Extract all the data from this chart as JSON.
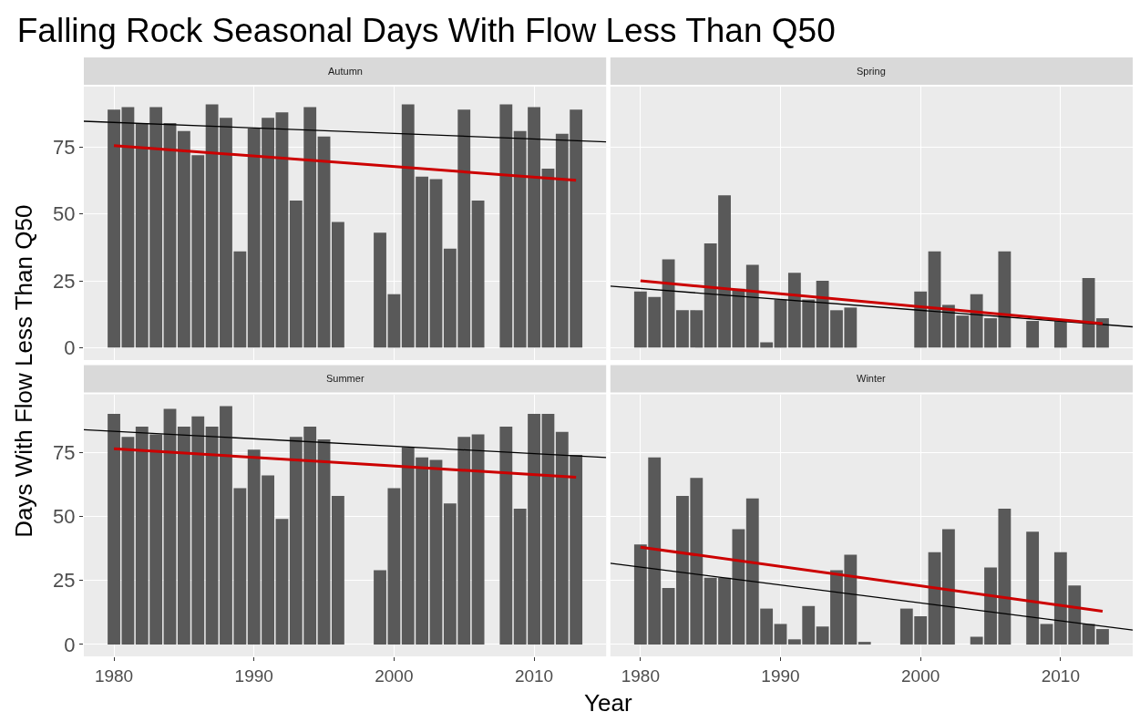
{
  "chart_data": [
    {
      "type": "bar",
      "title": "Falling Rock Seasonal Days With Flow Less Than Q50",
      "subtitle": "Autumn",
      "ylabel": "Days With Flow Less Than Q50",
      "x": [
        1980,
        1981,
        1982,
        1983,
        1984,
        1985,
        1986,
        1987,
        1988,
        1989,
        1990,
        1991,
        1992,
        1993,
        1994,
        1995,
        1996,
        1997,
        1998,
        1999,
        2000,
        2001,
        2002,
        2003,
        2004,
        2005,
        2006,
        2007,
        2008,
        2009,
        2010,
        2011,
        2012,
        2013
      ],
      "series": [
        {
          "color": "#595959",
          "values": [
            89,
            90,
            84,
            90,
            84,
            81,
            72,
            91,
            86,
            36,
            82,
            86,
            88,
            55,
            90,
            79,
            47,
            null,
            null,
            43,
            20,
            91,
            64,
            63,
            37,
            89,
            55,
            null,
            91,
            81,
            90,
            67,
            80,
            89
          ]
        },
        {
          "type": "line",
          "color": "#000000",
          "x": [
            1977.85,
            2015.15
          ],
          "values": [
            84.7,
            77
          ]
        },
        {
          "type": "line",
          "color": "#cc0000",
          "x": [
            1980,
            2013
          ],
          "values": [
            75.6,
            62.6
          ]
        }
      ],
      "xlim": [
        1977.85,
        2015.15
      ],
      "ylim": [
        -4.65,
        97.65
      ],
      "xticks": [
        1980,
        1990,
        2000,
        2010
      ],
      "yticks": [
        0,
        25,
        50,
        75
      ],
      "grid": true,
      "tick_labels": "y"
    },
    {
      "type": "bar",
      "subtitle": "Spring",
      "x": [
        1980,
        1981,
        1982,
        1983,
        1984,
        1985,
        1986,
        1987,
        1988,
        1989,
        1990,
        1991,
        1992,
        1993,
        1994,
        1995,
        1996,
        1997,
        1998,
        1999,
        2000,
        2001,
        2002,
        2003,
        2004,
        2005,
        2006,
        2007,
        2008,
        2009,
        2010,
        2011,
        2012,
        2013
      ],
      "series": [
        {
          "color": "#595959",
          "values": [
            21,
            19,
            33,
            14,
            14,
            39,
            57,
            22,
            31,
            2,
            18,
            28,
            18,
            25,
            14,
            15,
            null,
            null,
            null,
            null,
            21,
            36,
            16,
            12,
            20,
            11,
            36,
            null,
            10,
            null,
            10,
            null,
            26,
            11
          ]
        },
        {
          "type": "line",
          "color": "#000000",
          "x": [
            1977.85,
            2015.15
          ],
          "values": [
            23,
            7.8
          ]
        },
        {
          "type": "line",
          "color": "#cc0000",
          "x": [
            1980,
            2013
          ],
          "values": [
            25,
            9
          ]
        }
      ],
      "xlim": [
        1977.85,
        2015.15
      ],
      "ylim": [
        -4.65,
        97.65
      ],
      "xticks": [
        1980,
        1990,
        2000,
        2010
      ],
      "yticks": [
        0,
        25,
        50,
        75
      ],
      "grid": true,
      "tick_labels": false
    },
    {
      "type": "bar",
      "subtitle": "Summer",
      "xlabel": "Year",
      "x": [
        1980,
        1981,
        1982,
        1983,
        1984,
        1985,
        1986,
        1987,
        1988,
        1989,
        1990,
        1991,
        1992,
        1993,
        1994,
        1995,
        1996,
        1997,
        1998,
        1999,
        2000,
        2001,
        2002,
        2003,
        2004,
        2005,
        2006,
        2007,
        2008,
        2009,
        2010,
        2011,
        2012,
        2013
      ],
      "series": [
        {
          "color": "#595959",
          "values": [
            90,
            81,
            85,
            82,
            92,
            85,
            89,
            85,
            93,
            61,
            76,
            66,
            49,
            81,
            85,
            80,
            58,
            null,
            null,
            29,
            61,
            77,
            73,
            72,
            55,
            81,
            82,
            null,
            85,
            53,
            90,
            90,
            83,
            74
          ]
        },
        {
          "type": "line",
          "color": "#000000",
          "x": [
            1977.85,
            2015.15
          ],
          "values": [
            83.8,
            73
          ]
        },
        {
          "type": "line",
          "color": "#cc0000",
          "x": [
            1980,
            2013
          ],
          "values": [
            76.4,
            65.3
          ]
        }
      ],
      "xlim": [
        1977.85,
        2015.15
      ],
      "ylim": [
        -4.65,
        97.65
      ],
      "xticks": [
        1980,
        1990,
        2000,
        2010
      ],
      "yticks": [
        0,
        25,
        50,
        75
      ],
      "grid": true
    },
    {
      "type": "bar",
      "subtitle": "Winter",
      "x": [
        1980,
        1981,
        1982,
        1983,
        1984,
        1985,
        1986,
        1987,
        1988,
        1989,
        1990,
        1991,
        1992,
        1993,
        1994,
        1995,
        1996,
        1997,
        1998,
        1999,
        2000,
        2001,
        2002,
        2003,
        2004,
        2005,
        2006,
        2007,
        2008,
        2009,
        2010,
        2011,
        2012,
        2013
      ],
      "series": [
        {
          "color": "#595959",
          "values": [
            39,
            73,
            22,
            58,
            65,
            26,
            26,
            45,
            57,
            14,
            8,
            2,
            15,
            7,
            29,
            35,
            1,
            null,
            null,
            14,
            11,
            36,
            45,
            null,
            3,
            30,
            53,
            null,
            44,
            8,
            36,
            23,
            8,
            6
          ]
        },
        {
          "type": "line",
          "color": "#000000",
          "x": [
            1977.85,
            2015.15
          ],
          "values": [
            31.7,
            5.6
          ]
        },
        {
          "type": "line",
          "color": "#cc0000",
          "x": [
            1980,
            2013
          ],
          "values": [
            38,
            13
          ]
        }
      ],
      "xlim": [
        1977.85,
        2015.15
      ],
      "ylim": [
        -4.65,
        97.65
      ],
      "xticks": [
        1980,
        1990,
        2000,
        2010
      ],
      "yticks": [
        0,
        25,
        50,
        75
      ],
      "grid": true,
      "tick_labels": "x"
    }
  ]
}
